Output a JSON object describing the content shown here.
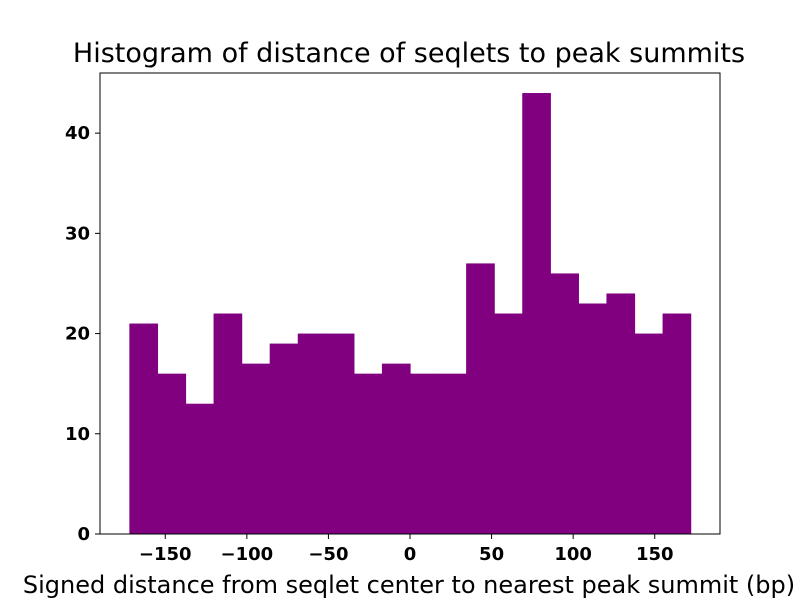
{
  "chart_data": {
    "type": "bar",
    "title": "Histogram of distance of seqlets to peak summits",
    "xlabel": "Signed distance from seqlet center to nearest peak summit (bp)",
    "ylabel": "",
    "bin_start": -172,
    "bin_width": 17.2,
    "values": [
      21,
      16,
      13,
      22,
      17,
      19,
      20,
      20,
      16,
      17,
      16,
      16,
      27,
      22,
      44,
      26,
      23,
      24,
      20,
      22
    ],
    "bar_color": "#800080",
    "xlim": [
      -190,
      190
    ],
    "ylim": [
      0,
      46
    ],
    "xticks": [
      -150,
      -100,
      -50,
      0,
      50,
      100,
      150
    ],
    "xtick_labels": [
      "−150",
      "−100",
      "−50",
      "0",
      "50",
      "100",
      "150"
    ],
    "yticks": [
      0,
      10,
      20,
      30,
      40
    ],
    "ytick_labels": [
      "0",
      "10",
      "20",
      "30",
      "40"
    ],
    "grid": false,
    "legend": "none"
  }
}
